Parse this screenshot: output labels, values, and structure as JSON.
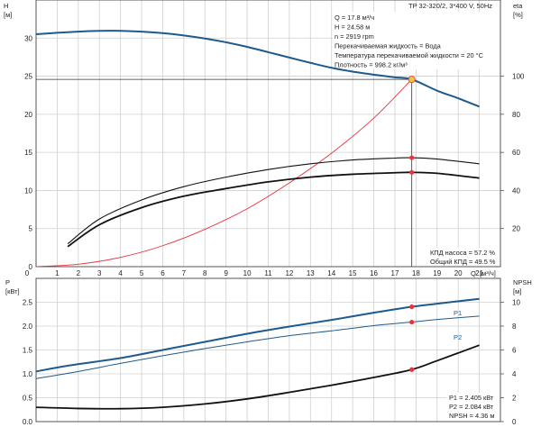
{
  "chart_data": [
    {
      "type": "line",
      "title": "TP 32-320/2, 3*400 V, 50Hz",
      "y_left_label": "H",
      "y_left_unit": "[м]",
      "y_right_label": "eta",
      "y_right_unit": "[%]",
      "x_label": "Q",
      "x_unit": "[м³/ч]",
      "xlim": [
        0,
        22
      ],
      "ylim_left": [
        0,
        35
      ],
      "ylim_right": [
        0,
        140
      ],
      "x_ticks": [
        "0",
        "1",
        "2",
        "3",
        "4",
        "5",
        "6",
        "7",
        "8",
        "9",
        "10",
        "11",
        "12",
        "13",
        "14",
        "15",
        "16",
        "17",
        "18",
        "19",
        "20",
        "21"
      ],
      "y_left_ticks": [
        "0",
        "5",
        "10",
        "15",
        "20",
        "25",
        "30"
      ],
      "y_right_ticks": [
        "20",
        "40",
        "60",
        "80",
        "100"
      ],
      "grid": true,
      "info_lines": [
        "Q = 17.8 м³/ч",
        "H = 24.58 м",
        "n = 2919 rpm",
        "Перекачиваемая жидкость = Вода",
        "Температура перекачиваемой жидкости = 20 °C",
        "Плотность = 998.2 кг/м³"
      ],
      "efficiency_text": [
        "КПД насоса = 57.2 %",
        "Общий КПД = 49.5 %"
      ],
      "duty_point": {
        "x": 17.8,
        "y": 24.58
      },
      "series": [
        {
          "axis": "left",
          "color": "#1f5a8c",
          "x": [
            0,
            1,
            2,
            3,
            4,
            5,
            6,
            7,
            8,
            9,
            10,
            11,
            12,
            13,
            14,
            15,
            16,
            17,
            17.8,
            19,
            20,
            21
          ],
          "y": [
            30.5,
            30.7,
            30.85,
            30.95,
            30.95,
            30.85,
            30.65,
            30.35,
            29.95,
            29.45,
            28.85,
            28.15,
            27.45,
            26.75,
            26.1,
            25.6,
            25.2,
            24.85,
            24.58,
            23.1,
            22.1,
            21.0
          ]
        },
        {
          "axis": "left",
          "color": "#e8323c",
          "x": [
            0,
            2,
            4,
            6,
            8,
            10,
            12,
            14,
            16,
            17.8
          ],
          "y": [
            0,
            0.32,
            1.22,
            2.75,
            4.9,
            7.6,
            11.0,
            14.9,
            19.5,
            24.58
          ]
        },
        {
          "axis": "right",
          "color": "#111111",
          "x": [
            1.5,
            3,
            5,
            7,
            9,
            11,
            13,
            15,
            17,
            17.8,
            19,
            21
          ],
          "y": [
            12,
            25,
            35,
            42,
            47,
            51,
            54,
            56,
            57,
            57.2,
            56.5,
            54
          ]
        },
        {
          "axis": "right",
          "color": "#111111",
          "x": [
            1.5,
            3,
            5,
            7,
            9,
            11,
            13,
            15,
            17,
            17.8,
            19,
            21
          ],
          "y": [
            10.5,
            22,
            31,
            37,
            41,
            44.5,
            47,
            48.5,
            49.3,
            49.5,
            49,
            46.5
          ]
        }
      ],
      "marked_points": [
        {
          "axis": "right",
          "x": 17.8,
          "y": 57.2
        },
        {
          "axis": "right",
          "x": 17.8,
          "y": 49.5
        }
      ]
    },
    {
      "type": "line",
      "y_left_label": "P",
      "y_left_unit": "[кВт]",
      "y_right_label": "NPSH",
      "y_right_unit": "[м]",
      "xlim": [
        0,
        22
      ],
      "ylim_left": [
        0,
        3.0
      ],
      "ylim_right": [
        0,
        12
      ],
      "y_left_ticks": [
        "0.0",
        "0.5",
        "1.0",
        "1.5",
        "2.0",
        "2.5"
      ],
      "y_right_ticks": [
        "0",
        "2",
        "4",
        "6",
        "8",
        "10"
      ],
      "grid": true,
      "info_lines": [
        "P1 = 2.405 кВт",
        "P2 = 2.084 кВт",
        "NPSH = 4.36 м"
      ],
      "series": [
        {
          "name": "P1",
          "axis": "left",
          "color": "#1f5a8c",
          "x": [
            0,
            1.5,
            4,
            6,
            8,
            10,
            12,
            14,
            16,
            17.8,
            19,
            21
          ],
          "y": [
            1.05,
            1.17,
            1.33,
            1.5,
            1.67,
            1.84,
            1.99,
            2.13,
            2.28,
            2.405,
            2.47,
            2.57
          ]
        },
        {
          "name": "P2",
          "axis": "left",
          "color": "#1f5a8c",
          "x": [
            0,
            2,
            4,
            6,
            8,
            10,
            12,
            14,
            16,
            17.8,
            19,
            21
          ],
          "y": [
            0.9,
            1.05,
            1.22,
            1.38,
            1.53,
            1.67,
            1.8,
            1.9,
            2.01,
            2.084,
            2.14,
            2.21
          ]
        },
        {
          "name": "NPSH",
          "axis": "right",
          "color": "#111111",
          "x": [
            0,
            2,
            4,
            6,
            8,
            10,
            12,
            14,
            16,
            17.8,
            19,
            21
          ],
          "y": [
            1.2,
            1.1,
            1.08,
            1.2,
            1.48,
            1.9,
            2.45,
            3.05,
            3.7,
            4.36,
            5.1,
            6.4
          ]
        }
      ],
      "marked_points": [
        {
          "axis": "left",
          "x": 17.8,
          "y": 2.405
        },
        {
          "axis": "left",
          "x": 17.8,
          "y": 2.084
        },
        {
          "axis": "right",
          "x": 17.8,
          "y": 4.36
        }
      ]
    }
  ]
}
